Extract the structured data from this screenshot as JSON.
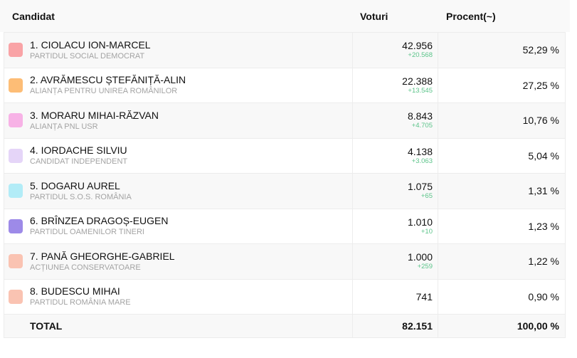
{
  "header": {
    "candidate": "Candidat",
    "votes": "Voturi",
    "percent": "Procent(~)"
  },
  "rows": [
    {
      "name": "1. CIOLACU ION-MARCEL",
      "party": "PARTIDUL SOCIAL DEMOCRAT",
      "votes": "42.956",
      "delta": "+20.568",
      "percent": "52,29 %",
      "color": "#f9a3a6"
    },
    {
      "name": "2. AVRĂMESCU ȘTEFĂNIȚĂ-ALIN",
      "party": "ALIANȚA PENTRU UNIREA ROMÂNILOR",
      "votes": "22.388",
      "delta": "+13.545",
      "percent": "27,25 %",
      "color": "#fdbd76"
    },
    {
      "name": "3. MORARU MIHAI-RĂZVAN",
      "party": "ALIANȚA PNL USR",
      "votes": "8.843",
      "delta": "+4.705",
      "percent": "10,76 %",
      "color": "#f7b2e6"
    },
    {
      "name": "4. IORDACHE SILVIU",
      "party": "CANDIDAT INDEPENDENT",
      "votes": "4.138",
      "delta": "+3.063",
      "percent": "5,04 %",
      "color": "#e5d5f8"
    },
    {
      "name": "5. DOGARU AUREL",
      "party": "PARTIDUL S.O.S. ROMÂNIA",
      "votes": "1.075",
      "delta": "+65",
      "percent": "1,31 %",
      "color": "#b2ecf7"
    },
    {
      "name": "6. BRÎNZEA DRAGOȘ-EUGEN",
      "party": "PARTIDUL OAMENILOR TINERI",
      "votes": "1.010",
      "delta": "+10",
      "percent": "1,23 %",
      "color": "#9d8ae8"
    },
    {
      "name": "7. PANĂ GHEORGHE-GABRIEL",
      "party": "ACȚIUNEA CONSERVATOARE",
      "votes": "1.000",
      "delta": "+259",
      "percent": "1,22 %",
      "color": "#fac3b2"
    },
    {
      "name": "8. BUDESCU MIHAI",
      "party": "PARTIDUL ROMÂNIA MARE",
      "votes": "741",
      "delta": null,
      "percent": "0,90 %",
      "color": "#fac3b2"
    }
  ],
  "total": {
    "label": "TOTAL",
    "votes": "82.151",
    "percent": "100,00 %"
  }
}
